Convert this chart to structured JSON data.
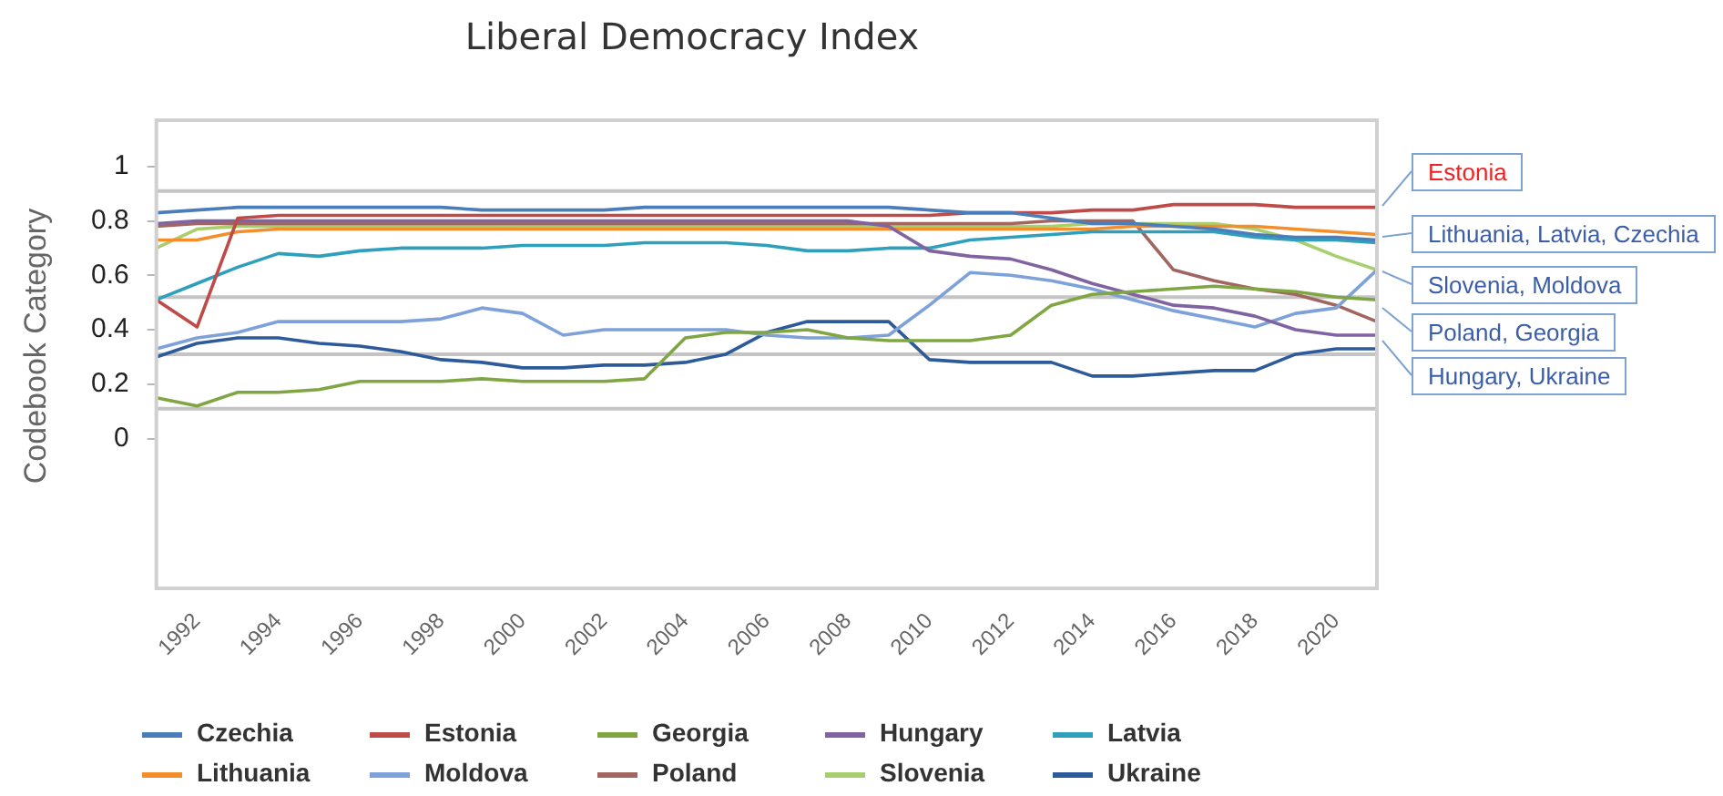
{
  "chart_data": {
    "type": "line",
    "title": "Liberal Democracy Index",
    "ylabel": "Codebook Category",
    "x": [
      1991,
      1992,
      1993,
      1994,
      1995,
      1996,
      1997,
      1998,
      1999,
      2000,
      2001,
      2002,
      2003,
      2004,
      2005,
      2006,
      2007,
      2008,
      2009,
      2010,
      2011,
      2012,
      2013,
      2014,
      2015,
      2016,
      2017,
      2018,
      2019,
      2020,
      2021
    ],
    "xlim": [
      1991,
      2021
    ],
    "xticks": [
      1992,
      1994,
      1996,
      1998,
      2000,
      2002,
      2004,
      2006,
      2008,
      2010,
      2012,
      2014,
      2016,
      2018,
      2020
    ],
    "ylim": [
      -0.55,
      1.17
    ],
    "yticks": [
      0,
      0.2,
      0.4,
      0.6,
      0.8,
      1
    ],
    "series": [
      {
        "name": "Czechia",
        "color": "#4a7ebb",
        "values": [
          0.83,
          0.84,
          0.85,
          0.85,
          0.85,
          0.85,
          0.85,
          0.85,
          0.84,
          0.84,
          0.84,
          0.84,
          0.85,
          0.85,
          0.85,
          0.85,
          0.85,
          0.85,
          0.85,
          0.84,
          0.83,
          0.83,
          0.81,
          0.79,
          0.79,
          0.78,
          0.77,
          0.75,
          0.74,
          0.74,
          0.73
        ]
      },
      {
        "name": "Estonia",
        "color": "#be4b48",
        "values": [
          0.51,
          0.41,
          0.81,
          0.82,
          0.82,
          0.82,
          0.82,
          0.82,
          0.82,
          0.82,
          0.82,
          0.82,
          0.82,
          0.82,
          0.82,
          0.82,
          0.82,
          0.82,
          0.82,
          0.82,
          0.83,
          0.83,
          0.83,
          0.84,
          0.84,
          0.86,
          0.86,
          0.86,
          0.85,
          0.85,
          0.85
        ]
      },
      {
        "name": "Georgia",
        "color": "#7fa642",
        "values": [
          0.15,
          0.12,
          0.17,
          0.17,
          0.18,
          0.21,
          0.21,
          0.21,
          0.22,
          0.21,
          0.21,
          0.21,
          0.22,
          0.37,
          0.39,
          0.39,
          0.4,
          0.37,
          0.36,
          0.36,
          0.36,
          0.38,
          0.49,
          0.53,
          0.54,
          0.55,
          0.56,
          0.55,
          0.54,
          0.52,
          0.51
        ]
      },
      {
        "name": "Hungary",
        "color": "#8064a2",
        "values": [
          0.79,
          0.8,
          0.8,
          0.8,
          0.8,
          0.8,
          0.8,
          0.8,
          0.8,
          0.8,
          0.8,
          0.8,
          0.8,
          0.8,
          0.8,
          0.8,
          0.8,
          0.8,
          0.78,
          0.69,
          0.67,
          0.66,
          0.62,
          0.57,
          0.53,
          0.49,
          0.48,
          0.45,
          0.4,
          0.38,
          0.38
        ]
      },
      {
        "name": "Latvia",
        "color": "#2ea0bb",
        "values": [
          0.51,
          0.57,
          0.63,
          0.68,
          0.67,
          0.69,
          0.7,
          0.7,
          0.7,
          0.71,
          0.71,
          0.71,
          0.72,
          0.72,
          0.72,
          0.71,
          0.69,
          0.69,
          0.7,
          0.7,
          0.73,
          0.74,
          0.75,
          0.76,
          0.76,
          0.76,
          0.76,
          0.74,
          0.73,
          0.73,
          0.72
        ]
      },
      {
        "name": "Lithuania",
        "color": "#f28e2b",
        "values": [
          0.73,
          0.73,
          0.76,
          0.77,
          0.77,
          0.77,
          0.77,
          0.77,
          0.77,
          0.77,
          0.77,
          0.77,
          0.77,
          0.77,
          0.77,
          0.77,
          0.77,
          0.77,
          0.77,
          0.77,
          0.77,
          0.77,
          0.77,
          0.77,
          0.78,
          0.78,
          0.78,
          0.78,
          0.77,
          0.76,
          0.75
        ]
      },
      {
        "name": "Moldova",
        "color": "#7da1d8",
        "values": [
          0.33,
          0.37,
          0.39,
          0.43,
          0.43,
          0.43,
          0.43,
          0.44,
          0.48,
          0.46,
          0.38,
          0.4,
          0.4,
          0.4,
          0.4,
          0.38,
          0.37,
          0.37,
          0.38,
          0.49,
          0.61,
          0.6,
          0.58,
          0.55,
          0.51,
          0.47,
          0.44,
          0.41,
          0.46,
          0.48,
          0.62
        ]
      },
      {
        "name": "Poland",
        "color": "#a0665f",
        "values": [
          0.78,
          0.79,
          0.79,
          0.79,
          0.79,
          0.79,
          0.79,
          0.79,
          0.79,
          0.79,
          0.79,
          0.79,
          0.79,
          0.79,
          0.79,
          0.79,
          0.79,
          0.79,
          0.79,
          0.79,
          0.79,
          0.79,
          0.8,
          0.8,
          0.8,
          0.62,
          0.58,
          0.55,
          0.53,
          0.49,
          0.43
        ]
      },
      {
        "name": "Slovenia",
        "color": "#a8cf6e",
        "values": [
          0.7,
          0.77,
          0.78,
          0.78,
          0.78,
          0.78,
          0.78,
          0.78,
          0.78,
          0.78,
          0.78,
          0.78,
          0.78,
          0.78,
          0.78,
          0.78,
          0.78,
          0.78,
          0.78,
          0.78,
          0.78,
          0.78,
          0.78,
          0.79,
          0.79,
          0.79,
          0.79,
          0.77,
          0.73,
          0.67,
          0.62
        ]
      },
      {
        "name": "Ukraine",
        "color": "#2d5a9a",
        "values": [
          0.3,
          0.35,
          0.37,
          0.37,
          0.35,
          0.34,
          0.32,
          0.29,
          0.28,
          0.26,
          0.26,
          0.27,
          0.27,
          0.28,
          0.31,
          0.39,
          0.43,
          0.43,
          0.43,
          0.29,
          0.28,
          0.28,
          0.28,
          0.23,
          0.23,
          0.24,
          0.25,
          0.25,
          0.31,
          0.33,
          0.33
        ]
      }
    ],
    "ref_lines": [
      {
        "axis": "y",
        "value": 0.91,
        "color": "#c4c4c4"
      },
      {
        "axis": "y",
        "value": 0.52,
        "color": "#c4c4c4"
      },
      {
        "axis": "y",
        "value": 0.31,
        "color": "#c4c4c4"
      },
      {
        "axis": "y",
        "value": 0.11,
        "color": "#c4c4c4"
      }
    ],
    "annotations": [
      "Estonia",
      "Lithuania, Latvia, Czechia",
      "Slovenia, Moldova",
      "Poland, Georgia",
      "Hungary, Ukraine"
    ],
    "legend": "bottom",
    "marker": "none",
    "line_style": "solid"
  }
}
